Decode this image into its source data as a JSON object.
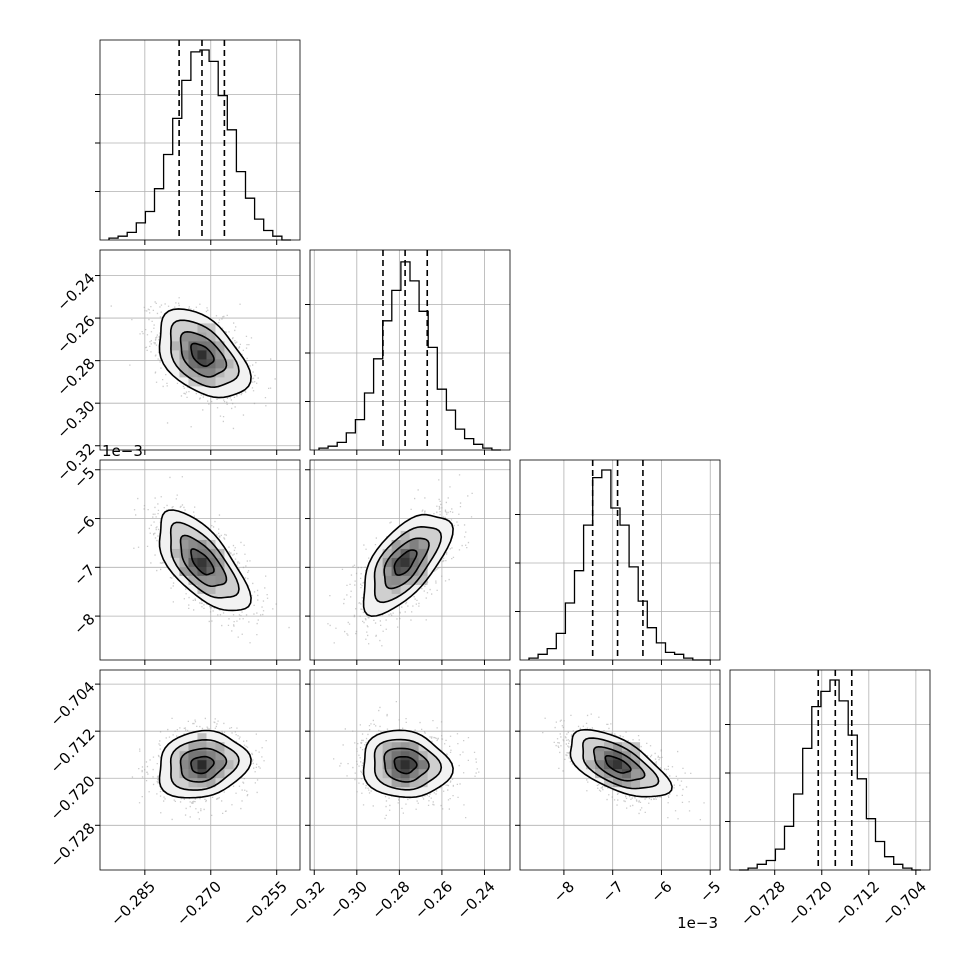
{
  "chart_data": {
    "type": "corner",
    "grid": true,
    "quantile_lines": [
      0.16,
      0.5,
      0.84
    ],
    "parameters": [
      {
        "index": 0,
        "range": [
          -0.2952,
          -0.2497
        ],
        "ticks": [
          -0.285,
          -0.27,
          -0.255
        ],
        "tick_labels": [
          "−0.285",
          "−0.270",
          "−0.255"
        ],
        "quantiles": [
          -0.2772,
          -0.272,
          -0.2669
        ],
        "offset_label": "",
        "histogram": [
          0.01,
          0.02,
          0.04,
          0.09,
          0.15,
          0.27,
          0.45,
          0.64,
          0.84,
          0.99,
          1.0,
          0.94,
          0.76,
          0.58,
          0.36,
          0.22,
          0.11,
          0.05,
          0.02,
          0.0
        ]
      },
      {
        "index": 1,
        "range": [
          -0.322,
          -0.228
        ],
        "ticks": [
          -0.32,
          -0.3,
          -0.28,
          -0.26,
          -0.24
        ],
        "tick_labels": [
          "−0.32",
          "−0.30",
          "−0.28",
          "−0.26",
          "−0.24"
        ],
        "quantiles": [
          -0.2877,
          -0.2773,
          -0.2669
        ],
        "offset_label": "",
        "histogram": [
          0.01,
          0.02,
          0.04,
          0.09,
          0.16,
          0.3,
          0.48,
          0.68,
          0.84,
          0.99,
          0.89,
          0.73,
          0.54,
          0.32,
          0.21,
          0.11,
          0.06,
          0.03,
          0.01,
          0.0
        ]
      },
      {
        "index": 2,
        "range": [
          -8.9,
          -4.8
        ],
        "ticks": [
          -8,
          -7,
          -6,
          -5
        ],
        "tick_labels": [
          "−8",
          "−7",
          "−6",
          "−5"
        ],
        "quantiles": [
          -7.41,
          -6.9,
          -6.38
        ],
        "offset_label": "1e−3",
        "histogram": [
          0.01,
          0.03,
          0.06,
          0.14,
          0.3,
          0.47,
          0.71,
          0.96,
          1.0,
          0.8,
          0.71,
          0.49,
          0.31,
          0.17,
          0.09,
          0.04,
          0.03,
          0.01,
          0.0,
          0.0
        ]
      },
      {
        "index": 3,
        "range": [
          -0.7356,
          -0.7016
        ],
        "ticks": [
          -0.728,
          -0.72,
          -0.712,
          -0.704
        ],
        "tick_labels": [
          "−0.728",
          "−0.720",
          "−0.712",
          "−0.704"
        ],
        "quantiles": [
          -0.7206,
          -0.7177,
          -0.7149
        ],
        "offset_label": "",
        "histogram": [
          0.0,
          0.01,
          0.03,
          0.05,
          0.11,
          0.23,
          0.4,
          0.64,
          0.86,
          0.94,
          1.0,
          0.89,
          0.71,
          0.48,
          0.27,
          0.15,
          0.07,
          0.03,
          0.01,
          0.0
        ]
      }
    ],
    "pairs": [
      {
        "x": 0,
        "y": 1,
        "center": [
          -0.272,
          -0.2773
        ],
        "corr": -0.45
      },
      {
        "x": 0,
        "y": 2,
        "center": [
          -0.272,
          -6.9
        ],
        "corr": -0.65
      },
      {
        "x": 1,
        "y": 2,
        "center": [
          -0.2773,
          -6.9
        ],
        "corr": 0.62
      },
      {
        "x": 0,
        "y": 3,
        "center": [
          -0.272,
          -0.7177
        ],
        "corr": 0.15
      },
      {
        "x": 1,
        "y": 3,
        "center": [
          -0.2773,
          -0.7177
        ],
        "corr": -0.1
      },
      {
        "x": 2,
        "y": 3,
        "center": [
          -6.9,
          -0.7177
        ],
        "corr": -0.6
      }
    ],
    "contour_levels_sigma": [
      0.5,
      1.0,
      1.5,
      2.0
    ],
    "colors": {
      "line": "#000000",
      "grid": "#b0b0b0",
      "points": "#a0a0a0",
      "density_max": "#000000"
    }
  }
}
